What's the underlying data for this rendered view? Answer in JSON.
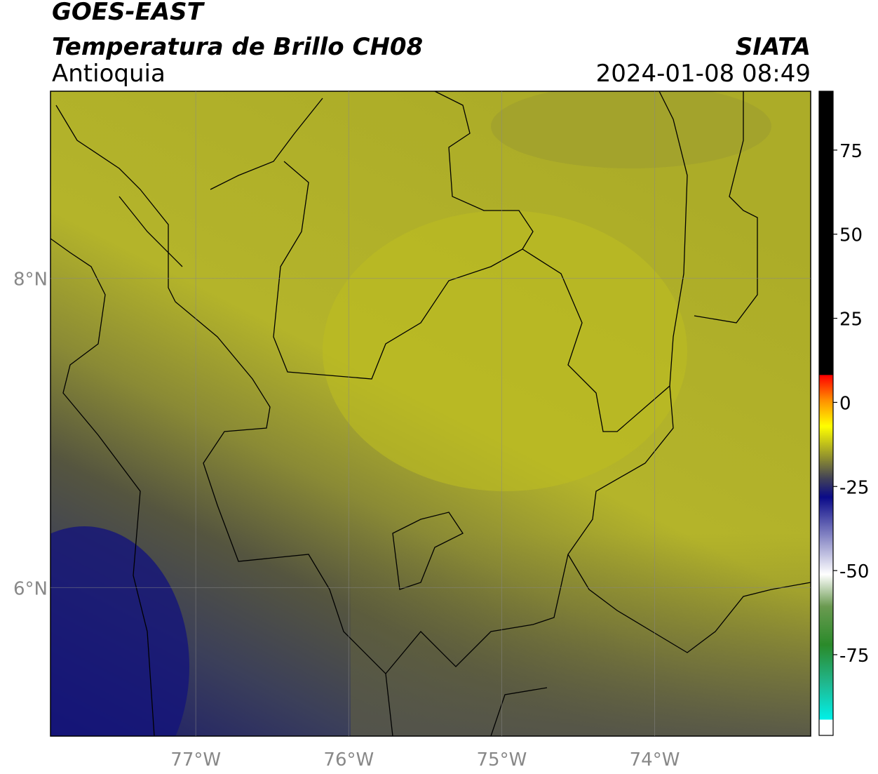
{
  "chart_data": {
    "type": "map",
    "title": "GOES-EAST",
    "subtitle": "Temperatura de Brillo CH08",
    "region": "Antioquia",
    "source": "SIATA",
    "datetime": "2024-01-08 08:49",
    "xlim": [
      -77.95,
      -72.98
    ],
    "ylim": [
      5.04,
      9.21
    ],
    "xticks": [
      {
        "value": -77,
        "label": "77°W"
      },
      {
        "value": -76,
        "label": "76°W"
      },
      {
        "value": -75,
        "label": "75°W"
      },
      {
        "value": -74,
        "label": "74°W"
      }
    ],
    "yticks": [
      {
        "value": 6,
        "label": "6°N"
      },
      {
        "value": 8,
        "label": "8°N"
      }
    ],
    "grid": true,
    "clim": [
      -99,
      92.5
    ],
    "cticks": [
      75,
      50,
      25,
      0,
      -25,
      -50,
      -75
    ]
  }
}
